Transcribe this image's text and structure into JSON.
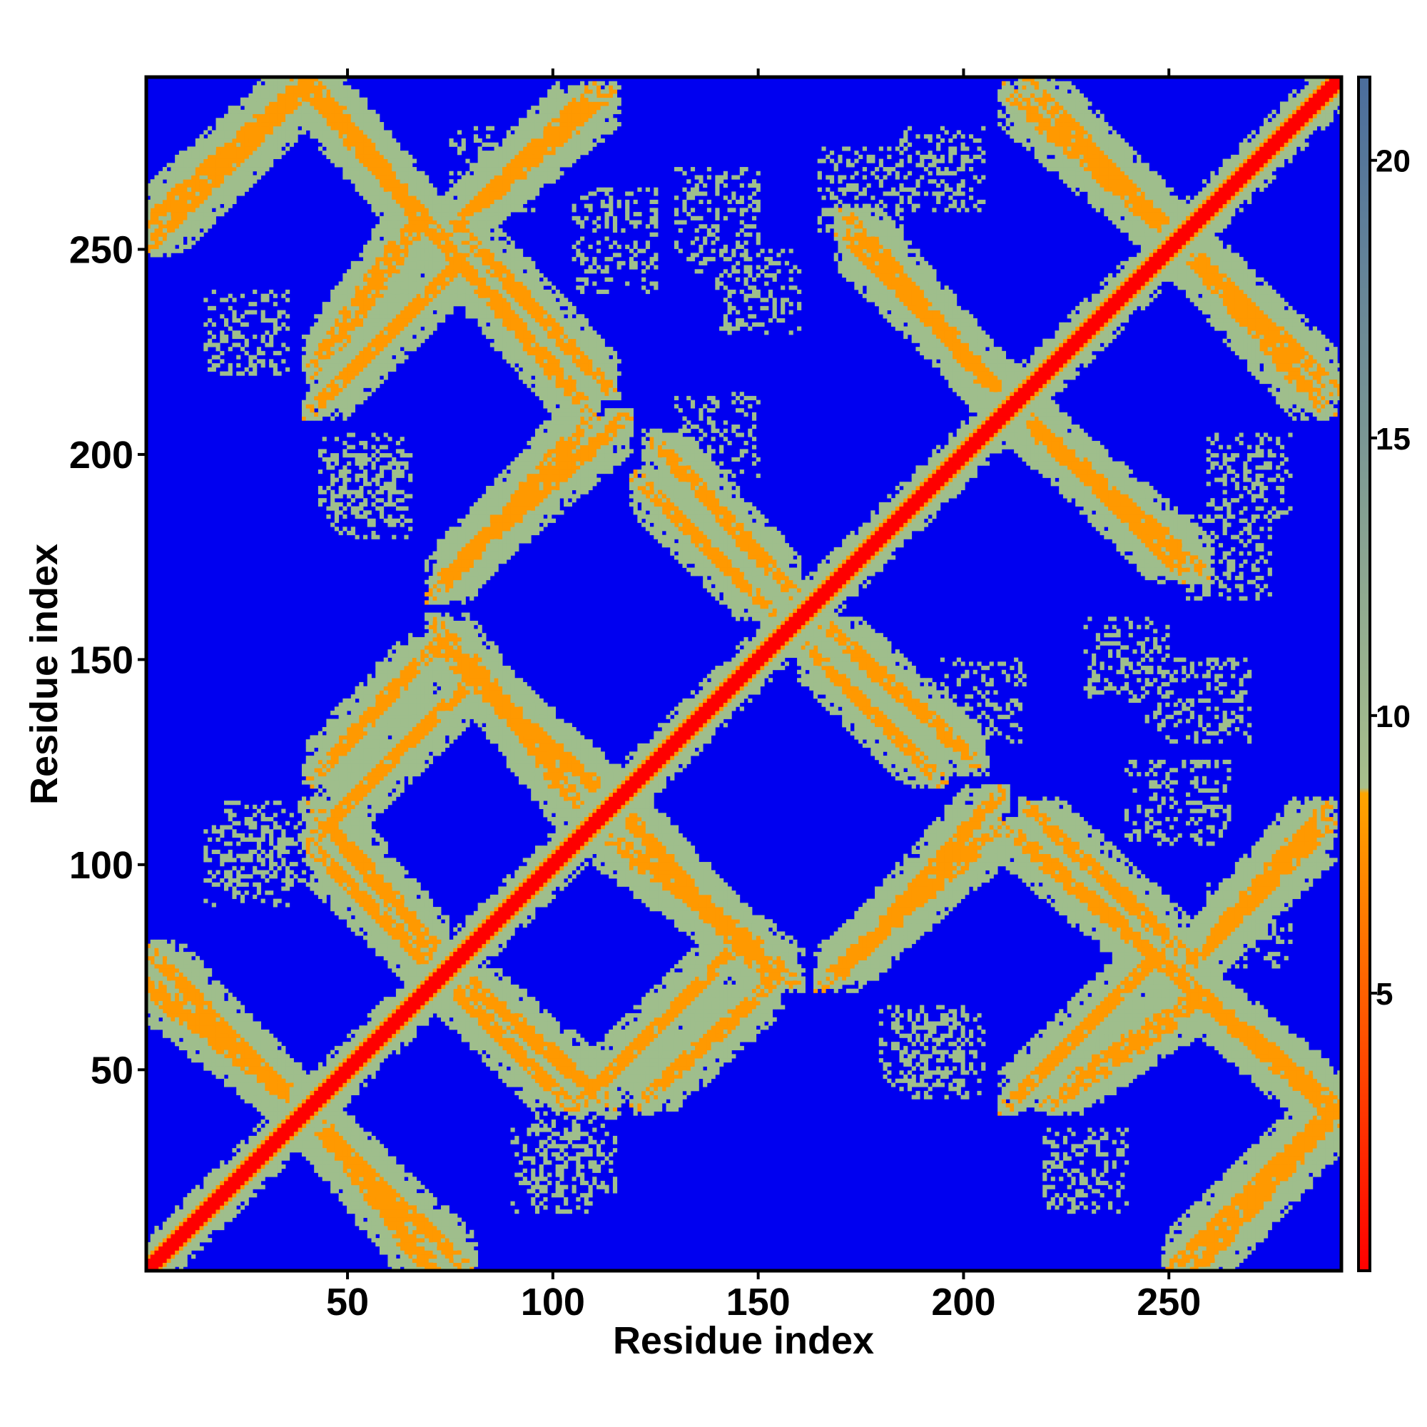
{
  "chart_data": {
    "type": "heatmap",
    "title": "",
    "xlabel": "Residue index",
    "ylabel": "Residue index",
    "xlim": [
      1,
      292
    ],
    "ylim": [
      1,
      292
    ],
    "x_ticks": [
      50,
      100,
      150,
      200,
      250
    ],
    "y_ticks": [
      50,
      100,
      150,
      200,
      250
    ],
    "n_residues": 292,
    "colorbar": {
      "range": [
        0,
        21.5
      ],
      "ticks": [
        5,
        10,
        15,
        20
      ],
      "color_stops": [
        {
          "value": 0,
          "color": "#ff0000"
        },
        {
          "value": 8.6,
          "color": "#ffa500"
        },
        {
          "value": 8.7,
          "color": "#a8bf8c"
        },
        {
          "value": 21.5,
          "color": "#4b6d9c"
        }
      ],
      "background_color": "#0000f0"
    },
    "colors": {
      "diagonal_core": "#ff0000",
      "contact_orange": "#ff9900",
      "contact_green": "#9fbe8c",
      "background": "#0000f0"
    },
    "contact_features": {
      "main_diagonal": {
        "from": [
          1,
          1
        ],
        "to": [
          292,
          292
        ]
      },
      "bands": [
        {
          "from": [
            1,
            257
          ],
          "to": [
            40,
            292
          ],
          "type": "parallel"
        },
        {
          "from": [
            42,
            290
          ],
          "to": [
            70,
            255
          ],
          "type": "antiparallel"
        },
        {
          "from": [
            80,
            260
          ],
          "to": [
            110,
            285
          ],
          "type": "parallel"
        },
        {
          "from": [
            45,
            225
          ],
          "to": [
            65,
            255
          ],
          "type": "parallel"
        },
        {
          "from": [
            82,
            250
          ],
          "to": [
            110,
            220
          ],
          "type": "antiparallel"
        },
        {
          "from": [
            78,
            175
          ],
          "to": [
            113,
            205
          ],
          "type": "parallel"
        },
        {
          "from": [
            128,
            200
          ],
          "to": [
            155,
            170
          ],
          "type": "antiparallel"
        },
        {
          "from": [
            45,
            125
          ],
          "to": [
            68,
            150
          ],
          "type": "parallel"
        },
        {
          "from": [
            75,
            150
          ],
          "to": [
            115,
            115
          ],
          "type": "antiparallel"
        },
        {
          "from": [
            1,
            70
          ],
          "to": [
            40,
            40
          ],
          "type": "antiparallel"
        },
        {
          "from": [
            45,
            100
          ],
          "to": [
            75,
            70
          ],
          "type": "antiparallel"
        },
        {
          "from": [
            43,
            35
          ],
          "to": [
            75,
            5
          ],
          "type": "antiparallel"
        },
        {
          "from": [
            115,
            105
          ],
          "to": [
            155,
            75
          ],
          "type": "antiparallel"
        },
        {
          "from": [
            110,
            45
          ],
          "to": [
            140,
            75
          ],
          "type": "parallel"
        },
        {
          "from": [
            80,
            70
          ],
          "to": [
            110,
            45
          ],
          "type": "antiparallel"
        },
        {
          "from": [
            165,
            150
          ],
          "to": [
            190,
            125
          ],
          "type": "antiparallel"
        },
        {
          "from": [
            170,
            75
          ],
          "to": [
            205,
            105
          ],
          "type": "parallel"
        },
        {
          "from": [
            215,
            105
          ],
          "to": [
            250,
            75
          ],
          "type": "antiparallel"
        },
        {
          "from": [
            215,
            45
          ],
          "to": [
            245,
            75
          ],
          "type": "parallel"
        },
        {
          "from": [
            255,
            70
          ],
          "to": [
            290,
            40
          ],
          "type": "antiparallel"
        },
        {
          "from": [
            255,
            5
          ],
          "to": [
            290,
            40
          ],
          "type": "parallel"
        },
        {
          "from": [
            260,
            80
          ],
          "to": [
            285,
            105
          ],
          "type": "parallel"
        },
        {
          "from": [
            175,
            250
          ],
          "to": [
            210,
            215
          ],
          "type": "antiparallel"
        },
        {
          "from": [
            215,
            285
          ],
          "to": [
            250,
            255
          ],
          "type": "antiparallel"
        },
        {
          "from": [
            250,
            255
          ],
          "to": [
            287,
            220
          ],
          "type": "antiparallel"
        },
        {
          "from": [
            213,
            210
          ],
          "to": [
            255,
            175
          ],
          "type": "antiparallel"
        }
      ],
      "speckle_regions": [
        {
          "from": [
            75,
            260
          ],
          "to": [
            95,
            280
          ]
        },
        {
          "from": [
            130,
            245
          ],
          "to": [
            150,
            270
          ]
        },
        {
          "from": [
            130,
            195
          ],
          "to": [
            150,
            215
          ]
        },
        {
          "from": [
            43,
            185
          ],
          "to": [
            63,
            205
          ]
        },
        {
          "from": [
            20,
            95
          ],
          "to": [
            38,
            115
          ]
        },
        {
          "from": [
            165,
            255
          ],
          "to": [
            185,
            275
          ]
        },
        {
          "from": [
            240,
            105
          ],
          "to": [
            265,
            125
          ]
        },
        {
          "from": [
            230,
            140
          ],
          "to": [
            250,
            160
          ]
        },
        {
          "from": [
            90,
            15
          ],
          "to": [
            110,
            35
          ]
        },
        {
          "from": [
            180,
            45
          ],
          "to": [
            200,
            65
          ]
        },
        {
          "from": [
            220,
            15
          ],
          "to": [
            240,
            35
          ]
        },
        {
          "from": [
            260,
            185
          ],
          "to": [
            280,
            205
          ]
        }
      ]
    }
  }
}
